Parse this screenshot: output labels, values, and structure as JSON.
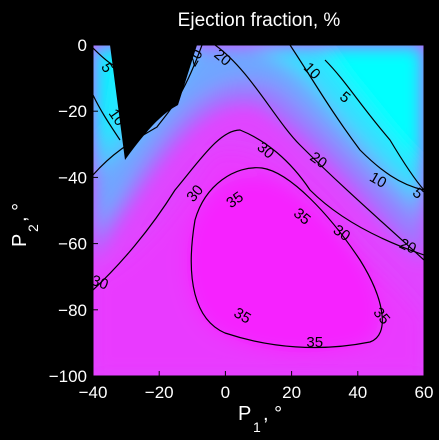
{
  "chart_data": {
    "type": "heatmap",
    "title": "Ejection fraction, %",
    "xlabel": "P",
    "xlabel_sub": "1",
    "xlabel_unit": ", °",
    "ylabel": "P",
    "ylabel_sub": "2",
    "ylabel_unit": ", °",
    "xlim": [
      -40,
      60
    ],
    "ylim": [
      -100,
      0
    ],
    "x_ticks": [
      "-40",
      "-20",
      "0",
      "20",
      "40",
      "60"
    ],
    "y_ticks": [
      "0",
      "-20",
      "-40",
      "-60",
      "-80",
      "-100"
    ],
    "colormap": {
      "low": "#00ffff",
      "high": "#ff00ff"
    },
    "undefined_region_color": "#000000",
    "contour_levels": [
      5,
      10,
      20,
      30,
      35
    ],
    "contour_labels": [
      {
        "text": "5",
        "x": -36,
        "y": -7,
        "angle": 60
      },
      {
        "text": "10",
        "x": -33,
        "y": -22,
        "angle": 55
      },
      {
        "text": "20",
        "x": -9,
        "y": -4,
        "angle": -60
      },
      {
        "text": "20",
        "x": -1,
        "y": -4,
        "angle": 40
      },
      {
        "text": "10",
        "x": 26,
        "y": -8,
        "angle": 45
      },
      {
        "text": "5",
        "x": 36,
        "y": -16,
        "angle": 40
      },
      {
        "text": "30",
        "x": 12,
        "y": -32,
        "angle": 40
      },
      {
        "text": "20",
        "x": 28,
        "y": -35,
        "angle": 35
      },
      {
        "text": "10",
        "x": 46,
        "y": -41,
        "angle": 30
      },
      {
        "text": "5",
        "x": 58,
        "y": -45,
        "angle": 45
      },
      {
        "text": "30",
        "x": -9,
        "y": -45,
        "angle": -50
      },
      {
        "text": "35",
        "x": 3,
        "y": -47,
        "angle": -35
      },
      {
        "text": "35",
        "x": 23,
        "y": -52,
        "angle": 40
      },
      {
        "text": "30",
        "x": 35,
        "y": -57,
        "angle": 35
      },
      {
        "text": "20",
        "x": 55,
        "y": -61,
        "angle": 25
      },
      {
        "text": "30",
        "x": -38,
        "y": -72,
        "angle": 20
      },
      {
        "text": "35",
        "x": 5,
        "y": -82,
        "angle": 30
      },
      {
        "text": "35",
        "x": 47,
        "y": -82,
        "angle": 50
      },
      {
        "text": "35",
        "x": 27,
        "y": -90,
        "angle": 0
      }
    ]
  }
}
